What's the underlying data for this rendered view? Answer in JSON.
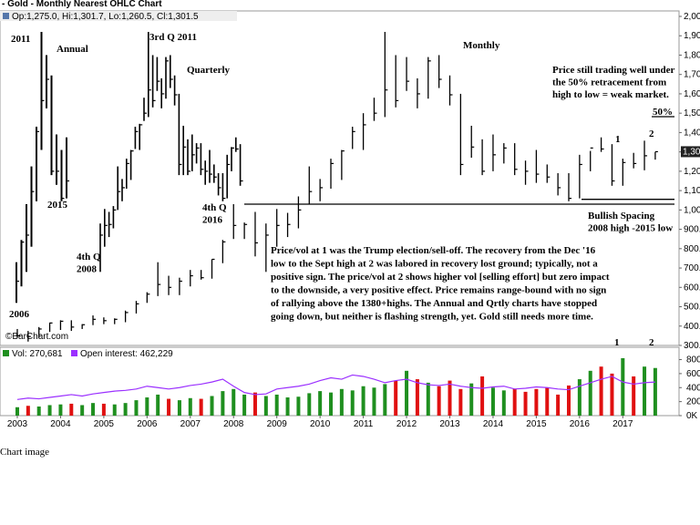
{
  "chart_data": {
    "type": "ohlc",
    "title": "C - Gold - Monthly Nearest OHLC Chart",
    "quote": "Op:1,275.0, Hi:1,301.7, Lo:1,260.5, Cl:1,301.5",
    "source": "©BarChart.com",
    "xlim": [
      2002.6,
      2018.3
    ],
    "xticks": [
      2003,
      2004,
      2005,
      2006,
      2007,
      2008,
      2009,
      2010,
      2011,
      2012,
      2013,
      2014,
      2015,
      2016,
      2017
    ],
    "ylim": [
      300,
      2000
    ],
    "yticks": [
      {
        "value": 300,
        "label": "300.0"
      },
      {
        "value": 400,
        "label": "400.0"
      },
      {
        "value": 500,
        "label": "500.0"
      },
      {
        "value": 600,
        "label": "600.0"
      },
      {
        "value": 700,
        "label": "700.0"
      },
      {
        "value": 800,
        "label": "800.0"
      },
      {
        "value": 900,
        "label": "900.0"
      },
      {
        "value": 1000,
        "label": "1,000"
      },
      {
        "value": 1100,
        "label": "1,100"
      },
      {
        "value": 1200,
        "label": "1,200"
      },
      {
        "value": 1300,
        "label": "1,300"
      },
      {
        "value": 1400,
        "label": "1,400"
      },
      {
        "value": 1500,
        "label": "1,500"
      },
      {
        "value": 1600,
        "label": "1,600"
      },
      {
        "value": 1700,
        "label": "1,700"
      },
      {
        "value": 1800,
        "label": "1,800"
      },
      {
        "value": 1900,
        "label": "1,900"
      },
      {
        "value": 2000,
        "label": "2,000"
      }
    ],
    "last_price": {
      "value": 1301,
      "label": "1,301"
    },
    "x": [
      2003,
      2003.25,
      2003.5,
      2003.75,
      2004,
      2004.25,
      2004.5,
      2004.75,
      2005,
      2005.25,
      2005.5,
      2005.75,
      2006,
      2006.25,
      2006.5,
      2006.75,
      2007,
      2007.25,
      2007.5,
      2007.75,
      2008,
      2008.25,
      2008.5,
      2008.75,
      2009,
      2009.25,
      2009.5,
      2009.75,
      2010,
      2010.25,
      2010.5,
      2010.75,
      2011,
      2011.25,
      2011.5,
      2011.75,
      2012,
      2012.25,
      2012.5,
      2012.75,
      2013,
      2013.25,
      2013.5,
      2013.75,
      2014,
      2014.25,
      2014.5,
      2014.75,
      2015,
      2015.25,
      2015.5,
      2015.75,
      2016,
      2016.25,
      2016.5,
      2016.75,
      2017,
      2017.25,
      2017.5,
      2017.75
    ],
    "high": [
      385,
      375,
      395,
      418,
      430,
      430,
      410,
      455,
      445,
      440,
      480,
      530,
      575,
      730,
      660,
      650,
      690,
      690,
      745,
      845,
      1030,
      935,
      990,
      930,
      1005,
      985,
      1070,
      1225,
      1160,
      1265,
      1310,
      1430,
      1500,
      1580,
      1920,
      1800,
      1790,
      1680,
      1790,
      1800,
      1695,
      1600,
      1435,
      1365,
      1390,
      1345,
      1345,
      1255,
      1310,
      1235,
      1190,
      1190,
      1285,
      1305,
      1375,
      1340,
      1265,
      1295,
      1358,
      1300
    ],
    "low": [
      340,
      320,
      340,
      370,
      380,
      375,
      385,
      405,
      410,
      410,
      420,
      465,
      520,
      555,
      560,
      560,
      605,
      640,
      645,
      725,
      850,
      850,
      760,
      680,
      810,
      860,
      905,
      1030,
      1045,
      1110,
      1155,
      1315,
      1310,
      1460,
      1480,
      1530,
      1615,
      1525,
      1575,
      1630,
      1540,
      1180,
      1270,
      1180,
      1200,
      1240,
      1180,
      1130,
      1140,
      1140,
      1075,
      1045,
      1060,
      1200,
      1300,
      1125,
      1125,
      1215,
      1205,
      1260
    ],
    "close": [
      350,
      346,
      385,
      416,
      425,
      395,
      407,
      435,
      428,
      435,
      470,
      515,
      565,
      615,
      600,
      632,
      660,
      650,
      745,
      835,
      920,
      925,
      830,
      870,
      920,
      925,
      1000,
      1095,
      1115,
      1240,
      1305,
      1405,
      1440,
      1500,
      1620,
      1565,
      1665,
      1600,
      1770,
      1675,
      1595,
      1235,
      1325,
      1200,
      1285,
      1320,
      1210,
      1200,
      1185,
      1170,
      1115,
      1060,
      1235,
      1320,
      1315,
      1150,
      1245,
      1240,
      1280,
      1301
    ],
    "annual": {
      "high": [
        730,
        845,
        1030,
        1225,
        1430,
        1920,
        1800,
        1695,
        1390,
        1310,
        1375
      ],
      "low": [
        520,
        605,
        680,
        810,
        1045,
        1310,
        1525,
        1180,
        1130,
        1045,
        1060
      ],
      "close": [
        632,
        834,
        870,
        1095,
        1405,
        1565,
        1675,
        1200,
        1200,
        1060,
        1150
      ]
    },
    "quarterly": {
      "high": [
        930,
        1005,
        990,
        1020,
        1225,
        1160,
        1265,
        1310,
        1430,
        1445,
        1580,
        1920,
        1800,
        1790,
        1680,
        1790,
        1800,
        1695,
        1600,
        1435,
        1365,
        1390,
        1345,
        1345,
        1255,
        1310,
        1235,
        1190,
        1190,
        1285,
        1325,
        1375,
        1340
      ],
      "low": [
        680,
        810,
        860,
        905,
        1000,
        1045,
        1110,
        1155,
        1315,
        1310,
        1460,
        1480,
        1530,
        1615,
        1525,
        1575,
        1630,
        1540,
        1180,
        1180,
        1180,
        1200,
        1240,
        1180,
        1130,
        1140,
        1140,
        1075,
        1045,
        1060,
        1200,
        1300,
        1125
      ],
      "close": [
        870,
        920,
        925,
        1000,
        1095,
        1115,
        1240,
        1305,
        1405,
        1440,
        1500,
        1620,
        1565,
        1665,
        1600,
        1770,
        1675,
        1595,
        1235,
        1325,
        1200,
        1285,
        1320,
        1210,
        1200,
        1185,
        1170,
        1115,
        1060,
        1235,
        1320,
        1315,
        1150
      ]
    },
    "levels": [
      1030,
      1055,
      1482
    ],
    "volume": {
      "name": "Vol: 270,681",
      "up_color": "#1f8f1f",
      "down_color": "#e01010",
      "ylim": [
        0,
        950000
      ],
      "yticks": [
        {
          "value": 0,
          "label": "0K"
        },
        {
          "value": 200000,
          "label": "200K"
        },
        {
          "value": 400000,
          "label": "400K"
        },
        {
          "value": 600000,
          "label": "600K"
        },
        {
          "value": 800000,
          "label": "800K"
        }
      ],
      "values": [
        120000,
        140000,
        130000,
        150000,
        160000,
        170000,
        150000,
        180000,
        170000,
        160000,
        180000,
        220000,
        260000,
        300000,
        240000,
        220000,
        250000,
        240000,
        280000,
        350000,
        380000,
        300000,
        330000,
        280000,
        300000,
        260000,
        270000,
        320000,
        350000,
        330000,
        380000,
        360000,
        420000,
        400000,
        450000,
        500000,
        640000,
        520000,
        470000,
        420000,
        500000,
        380000,
        460000,
        560000,
        400000,
        360000,
        380000,
        340000,
        380000,
        400000,
        300000,
        430000,
        520000,
        640000,
        700000,
        600000,
        820000,
        560000,
        700000,
        680000
      ]
    },
    "open_interest": {
      "name": "Open interest: 462,229",
      "color": "#9b30ff",
      "values": [
        230000,
        250000,
        240000,
        260000,
        280000,
        300000,
        280000,
        310000,
        330000,
        350000,
        360000,
        380000,
        420000,
        400000,
        380000,
        400000,
        430000,
        450000,
        480000,
        520000,
        420000,
        330000,
        300000,
        310000,
        380000,
        400000,
        420000,
        450000,
        500000,
        540000,
        520000,
        580000,
        560000,
        520000,
        470000,
        500000,
        520000,
        470000,
        440000,
        430000,
        450000,
        420000,
        400000,
        390000,
        410000,
        420000,
        380000,
        390000,
        410000,
        400000,
        380000,
        370000,
        420000,
        470000,
        520000,
        560000,
        480000,
        450000,
        470000,
        480000
      ]
    },
    "annotations": [
      [
        "2011"
      ],
      [
        "Annual"
      ],
      [
        "2015"
      ],
      [
        "2006"
      ],
      [
        "4th Q",
        "2008"
      ],
      [
        "3rd Q 2011"
      ],
      [
        "Quarterly"
      ],
      [
        "4th Q",
        "2016"
      ],
      [
        "Monthly"
      ],
      [
        "Price still trading well under",
        "the 50% retracement from",
        "high to low = weak market."
      ],
      [
        "50%"
      ],
      [
        "Bullish Spacing",
        "2008 high -2015 low"
      ],
      [
        "Price/vol at 1 was the Trump election/sell-off.  The recovery from the Dec '16",
        "low to the Sept high at 2 was labored in recovery lost ground; typically, not a",
        "positive sign.  The price/vol at 2 shows higher vol [selling effort] but zero impact",
        "to the downside, a very positive effect.  Price remains range-bound with no sign",
        "of rallying above the 1380+highs.  The Annual and Qrtly charts have stopped",
        "going down, but neither is flashing strength, yet.  Gold still needs more time."
      ],
      [
        "1"
      ],
      [
        "2"
      ],
      [
        "1"
      ],
      [
        "2"
      ]
    ]
  },
  "caption": "Chart image"
}
